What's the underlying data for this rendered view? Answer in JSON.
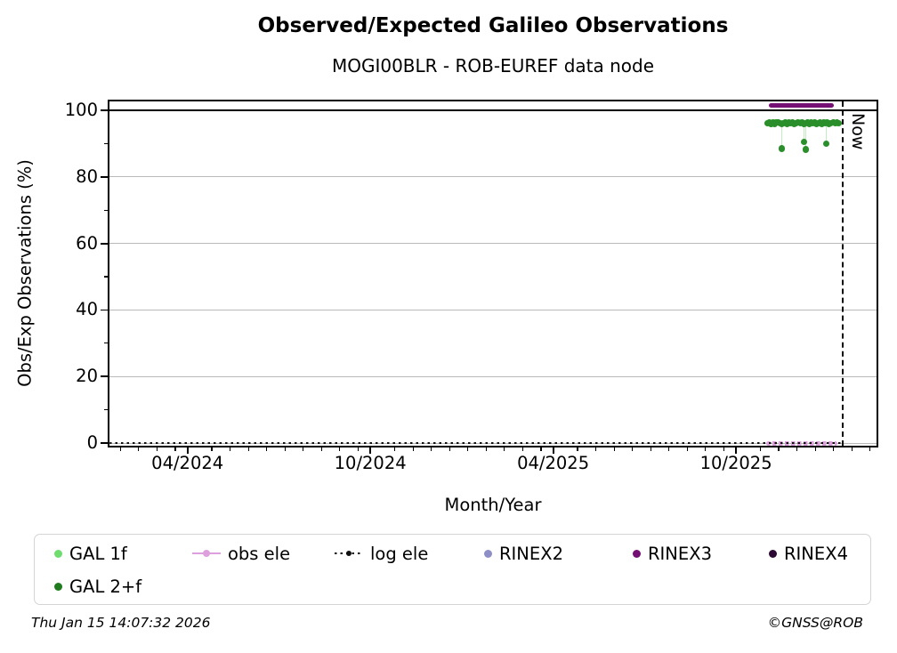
{
  "chart_data": {
    "type": "scatter",
    "title": "Observed/Expected Galileo Observations",
    "subtitle": "MOGI00BLR - ROB-EUREF data node",
    "xlabel": "Month/Year",
    "ylabel": "Obs/Exp Observations (%)",
    "x_unit": "months_since_2024-01-01",
    "xlim": [
      0.44,
      25.61
    ],
    "ylim": [
      -0.8,
      102.7
    ],
    "grid": "horizontal-gray",
    "legend_position": "bottom",
    "xticks": [
      {
        "pos": 3,
        "label": "04/2024"
      },
      {
        "pos": 9,
        "label": "10/2024"
      },
      {
        "pos": 15,
        "label": "04/2025"
      },
      {
        "pos": 21,
        "label": "10/2025"
      }
    ],
    "yticks": [
      0,
      20,
      40,
      60,
      80,
      100
    ],
    "yticks_minor": [
      10,
      30,
      50,
      70,
      90
    ],
    "reference_line": {
      "y": 100
    },
    "now_line": {
      "pos": 24.47,
      "label": "Now"
    },
    "series": [
      {
        "name": "GAL 1f",
        "color": "#6fdc6f",
        "type": "scatter",
        "points": [
          [
            22.02,
            96.2
          ],
          [
            22.14,
            96.0
          ],
          [
            22.26,
            96.3
          ],
          [
            22.38,
            96.4
          ],
          [
            22.5,
            96.1
          ],
          [
            22.62,
            96.3
          ],
          [
            22.74,
            96.2
          ],
          [
            22.86,
            96.4
          ],
          [
            22.98,
            96.1
          ],
          [
            23.1,
            96.3
          ],
          [
            23.22,
            96.0
          ],
          [
            23.34,
            96.3
          ],
          [
            23.46,
            96.2
          ],
          [
            23.58,
            96.4
          ],
          [
            23.7,
            96.1
          ],
          [
            23.82,
            96.2
          ],
          [
            23.94,
            96.3
          ],
          [
            24.06,
            96.1
          ],
          [
            24.18,
            96.3
          ],
          [
            24.3,
            96.2
          ]
        ]
      },
      {
        "name": "GAL 2+f",
        "color": "#2a8f2a",
        "type": "scatter",
        "points": [
          [
            22.02,
            96.1
          ],
          [
            22.08,
            96.3
          ],
          [
            22.14,
            95.9
          ],
          [
            22.2,
            96.4
          ],
          [
            22.26,
            96.0
          ],
          [
            22.32,
            96.3
          ],
          [
            22.38,
            96.5
          ],
          [
            22.44,
            96.1
          ],
          [
            22.5,
            95.8
          ],
          [
            22.56,
            96.2
          ],
          [
            22.62,
            96.4
          ],
          [
            22.68,
            96.0
          ],
          [
            22.74,
            96.3
          ],
          [
            22.8,
            96.1
          ],
          [
            22.86,
            96.4
          ],
          [
            22.92,
            95.9
          ],
          [
            22.98,
            96.2
          ],
          [
            23.04,
            96.5
          ],
          [
            23.1,
            96.1
          ],
          [
            23.16,
            96.3
          ],
          [
            23.22,
            95.9
          ],
          [
            23.28,
            96.2
          ],
          [
            23.34,
            96.4
          ],
          [
            23.4,
            96.0
          ],
          [
            23.46,
            96.3
          ],
          [
            23.52,
            96.1
          ],
          [
            23.58,
            96.4
          ],
          [
            23.64,
            95.9
          ],
          [
            23.7,
            96.2
          ],
          [
            23.76,
            96.5
          ],
          [
            23.82,
            96.0
          ],
          [
            23.88,
            96.3
          ],
          [
            23.94,
            96.1
          ],
          [
            24.0,
            96.4
          ],
          [
            24.06,
            96.0
          ],
          [
            24.12,
            96.2
          ],
          [
            24.18,
            96.4
          ],
          [
            24.24,
            96.1
          ],
          [
            24.3,
            96.3
          ],
          [
            24.36,
            96.2
          ]
        ],
        "dropouts": [
          [
            22.5,
            88.6
          ],
          [
            23.23,
            90.5
          ],
          [
            23.29,
            88.3
          ],
          [
            23.96,
            90.0
          ]
        ],
        "dropout_connector_from": 95.8
      },
      {
        "name": "obs ele",
        "color": "#dda0dd",
        "type": "dotted-bar",
        "value": 0,
        "x_start": 22.0,
        "x_end": 24.32
      },
      {
        "name": "log ele",
        "color": "#111111",
        "type": "dotted-line",
        "value": 0,
        "x_start": 0.44,
        "x_end": 24.47
      },
      {
        "name": "RINEX2",
        "color": "#8f8fc8",
        "type": "scatter",
        "points": []
      },
      {
        "name": "RINEX3",
        "color": "#740f74",
        "type": "bar-line",
        "value": 101.5,
        "x_start": 22.08,
        "x_end": 24.22
      },
      {
        "name": "RINEX4",
        "color": "#2d0a33",
        "type": "scatter",
        "points": []
      }
    ]
  },
  "legend": {
    "items": [
      {
        "label": "GAL 1f",
        "marker": "dot",
        "color": "#6fdc6f"
      },
      {
        "label": "obs ele",
        "marker": "line-dot",
        "color": "#dda0dd"
      },
      {
        "label": "log ele",
        "marker": "dotted-line-dot",
        "color": "#111111"
      },
      {
        "label": "RINEX2",
        "marker": "dot",
        "color": "#8f8fc8"
      },
      {
        "label": "RINEX3",
        "marker": "dot",
        "color": "#740f74"
      },
      {
        "label": "RINEX4",
        "marker": "dot",
        "color": "#2d0a33"
      },
      {
        "label": "GAL 2+f",
        "marker": "dot",
        "color": "#1e7b1e"
      }
    ]
  },
  "footer": {
    "left": "Thu Jan 15 14:07:32 2026",
    "right": "©GNSS@ROB"
  }
}
